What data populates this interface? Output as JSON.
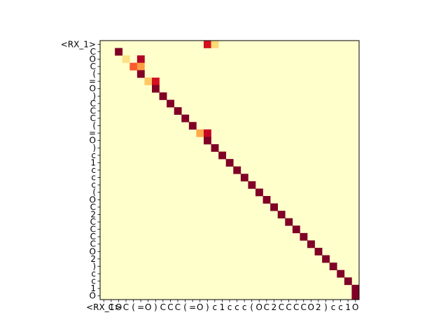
{
  "chart_data": {
    "type": "heatmap",
    "title": "",
    "xlabel": "",
    "ylabel": "",
    "colormap": "YlOrRd",
    "colors": {
      "low": "#ffffcc",
      "high": "#800026",
      "frame": "#000000"
    },
    "x_tokens": [
      "<RX_1>",
      "C",
      "O",
      "C",
      "(",
      "=",
      "O",
      ")",
      "C",
      "C",
      "C",
      "(",
      "=",
      "O",
      ")",
      "c",
      "1",
      "c",
      "c",
      "c",
      "(",
      "O",
      "C",
      "2",
      "C",
      "C",
      "C",
      "C",
      "O",
      "2",
      ")",
      "c",
      "c",
      "1",
      "O"
    ],
    "y_tokens": [
      "<RX_1>",
      "C",
      "O",
      "C",
      "(",
      "=",
      "O",
      ")",
      "C",
      "C",
      "C",
      "(",
      "=",
      "O",
      ")",
      "c",
      "1",
      "c",
      "c",
      "c",
      "(",
      "O",
      "C",
      "2",
      "C",
      "C",
      "C",
      "C",
      "O",
      "2",
      ")",
      "c",
      "c",
      "1",
      "O"
    ],
    "cells": [
      [
        0,
        14,
        0.8
      ],
      [
        0,
        15,
        0.25
      ],
      [
        1,
        2,
        1.0
      ],
      [
        2,
        3,
        0.2
      ],
      [
        2,
        5,
        0.9
      ],
      [
        3,
        4,
        0.6
      ],
      [
        3,
        5,
        0.45
      ],
      [
        4,
        5,
        1.0
      ],
      [
        5,
        6,
        0.3
      ],
      [
        5,
        7,
        0.8
      ],
      [
        6,
        7,
        1.0
      ],
      [
        7,
        8,
        1.0
      ],
      [
        8,
        9,
        1.0
      ],
      [
        9,
        10,
        1.0
      ],
      [
        10,
        11,
        1.0
      ],
      [
        11,
        12,
        1.0
      ],
      [
        12,
        13,
        0.4
      ],
      [
        12,
        14,
        0.85
      ],
      [
        13,
        14,
        1.0
      ],
      [
        14,
        15,
        1.0
      ],
      [
        15,
        16,
        1.0
      ],
      [
        16,
        17,
        1.0
      ],
      [
        17,
        18,
        1.0
      ],
      [
        18,
        19,
        1.0
      ],
      [
        19,
        20,
        1.0
      ],
      [
        20,
        21,
        1.0
      ],
      [
        21,
        22,
        1.0
      ],
      [
        22,
        23,
        1.0
      ],
      [
        23,
        24,
        1.0
      ],
      [
        24,
        25,
        1.0
      ],
      [
        25,
        26,
        1.0
      ],
      [
        26,
        27,
        1.0
      ],
      [
        27,
        28,
        1.0
      ],
      [
        28,
        29,
        1.0
      ],
      [
        29,
        30,
        1.0
      ],
      [
        30,
        31,
        1.0
      ],
      [
        31,
        32,
        1.0
      ],
      [
        32,
        33,
        1.0
      ],
      [
        33,
        34,
        1.0
      ],
      [
        34,
        34,
        1.0
      ]
    ]
  }
}
